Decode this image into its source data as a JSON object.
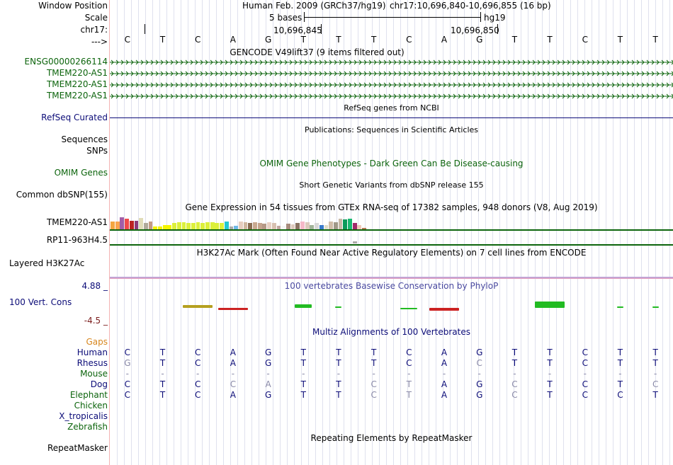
{
  "colors": {
    "green": "#0c640c",
    "navy": "#0c0c78",
    "blue_track": "#4a4aa0",
    "maroon": "#7a1c1c",
    "orange": "#d7861e",
    "grid": "#dfe1ee",
    "gray_base": "#8a8aa8"
  },
  "labels": {
    "window_position": "Window Position",
    "scale": "Scale",
    "chrom": "chr17:",
    "arrow": "--->",
    "ensg": "ENSG00000266114",
    "tmem1": "TMEM220-AS1",
    "tmem2": "TMEM220-AS1",
    "tmem3": "TMEM220-AS1",
    "refseq": "RefSeq Curated",
    "sequences": "Sequences",
    "snps": "SNPs",
    "omim": "OMIM Genes",
    "dbsnp": "Common dbSNP(155)",
    "gtex_gene1": "TMEM220-AS1",
    "gtex_gene2": "RP11-963H4.5",
    "h3k27ac": "Layered H3K27Ac",
    "cons_max": "4.88 _",
    "cons": "100 Vert. Cons",
    "cons_min": "-4.5 _",
    "gaps": "Gaps",
    "repeatmasker": "RepeatMasker"
  },
  "species": [
    "Human",
    "Rhesus",
    "Mouse",
    "Dog",
    "Elephant",
    "Chicken",
    "X_tropicalis",
    "Zebrafish"
  ],
  "header": {
    "assembly": "Human Feb. 2009 (GRCh37/hg19)",
    "position": "chr17:10,696,840-10,696,855 (16 bp)",
    "scale_text": "5 bases",
    "scale_db": "hg19",
    "coord1": "10,696,845",
    "coord2": "10,696,850"
  },
  "titles": {
    "gencode": "GENCODE V49lift37 (9 items filtered out)",
    "refseq": "RefSeq genes from NCBI",
    "publications": "Publications: Sequences in Scientific Articles",
    "omim": "OMIM Gene Phenotypes - Dark Green Can Be Disease-causing",
    "dbsnp": "Short Genetic Variants from dbSNP release 155",
    "gtex": "Gene Expression in 54 tissues from GTEx RNA-seq of 17382 samples, 948 donors (V8, Aug 2019)",
    "h3k27ac": "H3K27Ac Mark (Often Found Near Active Regulatory Elements) on 7 cell lines from ENCODE",
    "phylop": "100 vertebrates Basewise Conservation by PhyloP",
    "multiz": "Multiz Alignments of 100 Vertebrates",
    "repeatmasker": "Repeating Elements by RepeatMasker"
  },
  "ruler_bases": [
    "C",
    "T",
    "C",
    "A",
    "G",
    "T",
    "T",
    "T",
    "C",
    "A",
    "G",
    "T",
    "T",
    "C",
    "T",
    "T"
  ],
  "alignment": {
    "human": [
      {
        "b": "C",
        "g": false
      },
      {
        "b": "T",
        "g": false
      },
      {
        "b": "C",
        "g": false
      },
      {
        "b": "A",
        "g": false
      },
      {
        "b": "G",
        "g": false
      },
      {
        "b": "T",
        "g": false
      },
      {
        "b": "T",
        "g": false
      },
      {
        "b": "T",
        "g": false
      },
      {
        "b": "C",
        "g": false
      },
      {
        "b": "A",
        "g": false
      },
      {
        "b": "G",
        "g": false
      },
      {
        "b": "T",
        "g": false
      },
      {
        "b": "T",
        "g": false
      },
      {
        "b": "C",
        "g": false
      },
      {
        "b": "T",
        "g": false
      },
      {
        "b": "T",
        "g": false
      }
    ],
    "rhesus": [
      {
        "b": "G",
        "g": true
      },
      {
        "b": "T",
        "g": false
      },
      {
        "b": "C",
        "g": false
      },
      {
        "b": "A",
        "g": false
      },
      {
        "b": "G",
        "g": false
      },
      {
        "b": "T",
        "g": false
      },
      {
        "b": "T",
        "g": false
      },
      {
        "b": "T",
        "g": false
      },
      {
        "b": "C",
        "g": false
      },
      {
        "b": "A",
        "g": false
      },
      {
        "b": "C",
        "g": true
      },
      {
        "b": "T",
        "g": false
      },
      {
        "b": "T",
        "g": false
      },
      {
        "b": "C",
        "g": false
      },
      {
        "b": "T",
        "g": false
      },
      {
        "b": "T",
        "g": false
      }
    ],
    "mouse": [
      {
        "b": "-",
        "g": true
      },
      {
        "b": "-",
        "g": true
      },
      {
        "b": "-",
        "g": true
      },
      {
        "b": "-",
        "g": true
      },
      {
        "b": "-",
        "g": true
      },
      {
        "b": "-",
        "g": true
      },
      {
        "b": "-",
        "g": true
      },
      {
        "b": "-",
        "g": true
      },
      {
        "b": "-",
        "g": true
      },
      {
        "b": "-",
        "g": true
      },
      {
        "b": "-",
        "g": true
      },
      {
        "b": "-",
        "g": true
      },
      {
        "b": "-",
        "g": true
      },
      {
        "b": "-",
        "g": true
      },
      {
        "b": "-",
        "g": true
      },
      {
        "b": "-",
        "g": true
      }
    ],
    "dog": [
      {
        "b": "C",
        "g": false
      },
      {
        "b": "T",
        "g": false
      },
      {
        "b": "C",
        "g": false
      },
      {
        "b": "C",
        "g": true
      },
      {
        "b": "A",
        "g": true
      },
      {
        "b": "T",
        "g": false
      },
      {
        "b": "T",
        "g": false
      },
      {
        "b": "C",
        "g": true
      },
      {
        "b": "T",
        "g": true
      },
      {
        "b": "A",
        "g": false
      },
      {
        "b": "G",
        "g": false
      },
      {
        "b": "C",
        "g": true
      },
      {
        "b": "T",
        "g": false
      },
      {
        "b": "C",
        "g": false
      },
      {
        "b": "T",
        "g": false
      },
      {
        "b": "C",
        "g": true
      }
    ],
    "elephant": [
      {
        "b": "C",
        "g": false
      },
      {
        "b": "T",
        "g": false
      },
      {
        "b": "C",
        "g": false
      },
      {
        "b": "A",
        "g": false
      },
      {
        "b": "G",
        "g": false
      },
      {
        "b": "T",
        "g": false
      },
      {
        "b": "T",
        "g": false
      },
      {
        "b": "C",
        "g": true
      },
      {
        "b": "T",
        "g": true
      },
      {
        "b": "A",
        "g": false
      },
      {
        "b": "G",
        "g": false
      },
      {
        "b": "C",
        "g": true
      },
      {
        "b": "T",
        "g": false
      },
      {
        "b": "C",
        "g": false
      },
      {
        "b": "C",
        "g": false
      },
      {
        "b": "T",
        "g": false
      }
    ]
  },
  "gtex_colors": [
    "#f4a640",
    "#f9a44e",
    "#a25ea8",
    "#f04a4a",
    "#bb2222",
    "#8d3a7a",
    "#e0dcb8",
    "#b0a99a",
    "#c49a84",
    "#f5f500",
    "#f5f500",
    "#f5f500",
    "#f5f500",
    "#dcf03a",
    "#dcf03a",
    "#dcf03a",
    "#dcf03a",
    "#dcf03a",
    "#dcf03a",
    "#dcf03a",
    "#dcf03a",
    "#dcf03a",
    "#dcf03a",
    "#dcf03a",
    "#22c8d2",
    "#aaaaaa",
    "#6fb8e6",
    "#e6cdbe",
    "#cfb69e",
    "#8a6c52",
    "#c8a890",
    "#c5a48e",
    "#b59886",
    "#e8d0c4",
    "#d8c0b0",
    "#c2a6a0",
    "#f5f5f5",
    "#a88c7e",
    "#dcc8bc",
    "#8a7262",
    "#f5b8c8",
    "#dcc8bc",
    "#a2b49a",
    "#d8d8d8",
    "#3a7aca",
    "#e0dcc8",
    "#d0bca8",
    "#a09888",
    "#c8b8a8",
    "#0a9a5a",
    "#18b870",
    "#a02a6a",
    "#f0c8b8",
    "#b47a52"
  ],
  "gtex_values": [
    0.55,
    0.55,
    0.85,
    0.75,
    0.6,
    0.6,
    0.8,
    0.45,
    0.55,
    0.2,
    0.2,
    0.3,
    0.3,
    0.45,
    0.5,
    0.5,
    0.45,
    0.45,
    0.5,
    0.45,
    0.5,
    0.5,
    0.45,
    0.45,
    0.55,
    0.2,
    0.25,
    0.55,
    0.5,
    0.45,
    0.5,
    0.45,
    0.4,
    0.5,
    0.45,
    0.25,
    0.25,
    0.4,
    0.35,
    0.45,
    0.55,
    0.5,
    0.3,
    0.45,
    0.3,
    0.3,
    0.55,
    0.5,
    0.75,
    0.7,
    0.75,
    0.45,
    0.3,
    0.1
  ],
  "phylop": [
    {
      "v": 0.6,
      "c": "#b5a020",
      "w": 1.4
    },
    {
      "v": -0.5,
      "c": "#cc2222",
      "w": 1.4
    },
    {
      "v": 0.8,
      "c": "#22bb22",
      "w": 0.8
    },
    {
      "v": 0.4,
      "c": "#22bb22",
      "w": 0.3
    },
    {
      "v": -0.3,
      "c": "#22bb22",
      "w": 0.8
    },
    {
      "v": -0.6,
      "c": "#cc2222",
      "w": 1.4
    },
    {
      "v": 1.5,
      "c": "#22bb22",
      "w": 1.4
    },
    {
      "v": 0.3,
      "c": "#22bb22",
      "w": 0.3
    },
    {
      "v": 0.4,
      "c": "#22bb22",
      "w": 0.3
    }
  ]
}
